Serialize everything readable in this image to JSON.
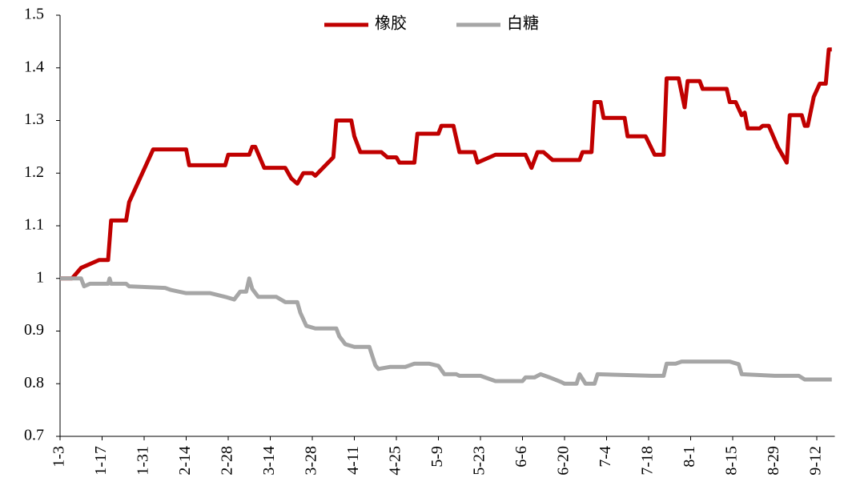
{
  "chart_data": {
    "type": "line",
    "xlim": [
      0,
      258
    ],
    "xticks": [
      {
        "value": 0,
        "label": "1-3"
      },
      {
        "value": 14,
        "label": "1-17"
      },
      {
        "value": 28,
        "label": "1-31"
      },
      {
        "value": 42,
        "label": "2-14"
      },
      {
        "value": 56,
        "label": "2-28"
      },
      {
        "value": 70,
        "label": "3-14"
      },
      {
        "value": 84,
        "label": "3-28"
      },
      {
        "value": 98,
        "label": "4-11"
      },
      {
        "value": 112,
        "label": "4-25"
      },
      {
        "value": 126,
        "label": "5-9"
      },
      {
        "value": 140,
        "label": "5-23"
      },
      {
        "value": 154,
        "label": "6-6"
      },
      {
        "value": 168,
        "label": "6-20"
      },
      {
        "value": 182,
        "label": "7-4"
      },
      {
        "value": 196,
        "label": "7-18"
      },
      {
        "value": 210,
        "label": "8-1"
      },
      {
        "value": 224,
        "label": "8-15"
      },
      {
        "value": 238,
        "label": "8-29"
      },
      {
        "value": 252,
        "label": "9-12"
      }
    ],
    "ylim": [
      0.7,
      1.5
    ],
    "yticks": [
      0.7,
      0.8,
      0.9,
      1,
      1.1,
      1.2,
      1.3,
      1.4,
      1.5
    ],
    "legend": "top",
    "series": [
      {
        "name": "橡胶",
        "color": "#c00000",
        "x": [
          0,
          4,
          7,
          9,
          13,
          16,
          17,
          22,
          23,
          31,
          42,
          43,
          55,
          56,
          63,
          64,
          65,
          68,
          75,
          77,
          79,
          81,
          84,
          85,
          91,
          92,
          97,
          98,
          100,
          107,
          109,
          112,
          113,
          118,
          119,
          126,
          127,
          131,
          133,
          138,
          139,
          145,
          155,
          157,
          159,
          161,
          164,
          173,
          174,
          177,
          178,
          180,
          181,
          188,
          189,
          195,
          198,
          201,
          202,
          206,
          208,
          209,
          213,
          214,
          222,
          223,
          225,
          227,
          228,
          229,
          233,
          234,
          236,
          239,
          242,
          243,
          247,
          248,
          249,
          251,
          253,
          255,
          256,
          257
        ],
        "values": [
          1.0,
          1.0,
          1.02,
          1.025,
          1.035,
          1.035,
          1.11,
          1.11,
          1.145,
          1.245,
          1.245,
          1.215,
          1.215,
          1.235,
          1.235,
          1.25,
          1.25,
          1.21,
          1.21,
          1.19,
          1.18,
          1.2,
          1.2,
          1.195,
          1.23,
          1.3,
          1.3,
          1.27,
          1.24,
          1.24,
          1.23,
          1.23,
          1.22,
          1.22,
          1.275,
          1.275,
          1.29,
          1.29,
          1.24,
          1.24,
          1.22,
          1.235,
          1.235,
          1.21,
          1.24,
          1.24,
          1.225,
          1.225,
          1.24,
          1.24,
          1.335,
          1.335,
          1.305,
          1.305,
          1.27,
          1.27,
          1.235,
          1.235,
          1.38,
          1.38,
          1.325,
          1.375,
          1.375,
          1.36,
          1.36,
          1.335,
          1.335,
          1.31,
          1.315,
          1.285,
          1.285,
          1.29,
          1.29,
          1.25,
          1.22,
          1.31,
          1.31,
          1.29,
          1.29,
          1.345,
          1.37,
          1.37,
          1.435,
          1.435
        ]
      },
      {
        "name": "白糖",
        "color": "#a6a6a6",
        "x": [
          0,
          7,
          8,
          10,
          16,
          16.5,
          17,
          22,
          23,
          35,
          37,
          42,
          50,
          55,
          58,
          60,
          62,
          63,
          64,
          66,
          72,
          75,
          79,
          80,
          82,
          85,
          92,
          93,
          95,
          98,
          103,
          105,
          106,
          110,
          115,
          118,
          123,
          126,
          128,
          132,
          133,
          140,
          145,
          154,
          155,
          158,
          160,
          163,
          167,
          168,
          172,
          173,
          175,
          178,
          179,
          197,
          201,
          202,
          205,
          207,
          223,
          226,
          227,
          238,
          246,
          248,
          257
        ],
        "values": [
          1.0,
          1.0,
          0.985,
          0.99,
          0.99,
          1.0,
          0.99,
          0.99,
          0.985,
          0.982,
          0.978,
          0.972,
          0.972,
          0.965,
          0.96,
          0.975,
          0.975,
          1.0,
          0.98,
          0.965,
          0.965,
          0.955,
          0.955,
          0.935,
          0.91,
          0.905,
          0.905,
          0.89,
          0.875,
          0.87,
          0.87,
          0.835,
          0.828,
          0.832,
          0.832,
          0.838,
          0.838,
          0.834,
          0.818,
          0.818,
          0.815,
          0.815,
          0.805,
          0.805,
          0.812,
          0.812,
          0.818,
          0.812,
          0.803,
          0.8,
          0.8,
          0.818,
          0.8,
          0.8,
          0.818,
          0.815,
          0.815,
          0.838,
          0.838,
          0.842,
          0.842,
          0.837,
          0.818,
          0.815,
          0.815,
          0.808,
          0.808
        ]
      }
    ]
  }
}
